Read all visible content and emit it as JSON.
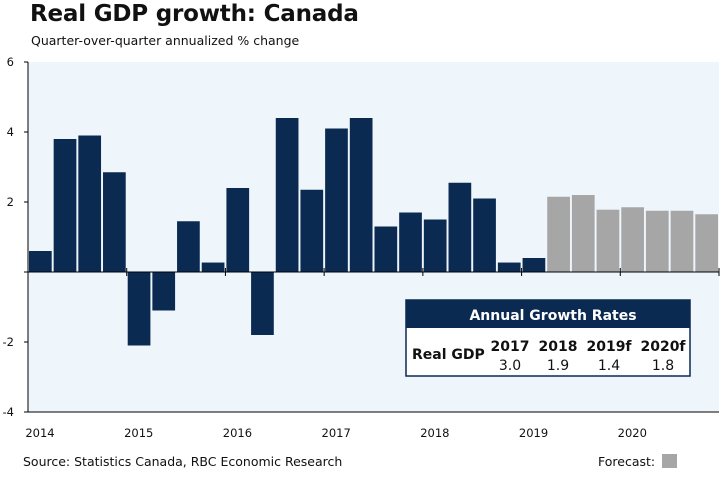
{
  "header": {
    "title": "Real GDP growth: Canada",
    "subtitle": "Quarter-over-quarter annualized % change"
  },
  "footer": {
    "source": "Source: Statistics Canada, RBC Economic Research",
    "forecast_label": "Forecast:"
  },
  "colors": {
    "actual": "#0b2a52",
    "forecast": "#a6a6a6",
    "plot_background": "#eef5fb",
    "table_border": "#0b2a52"
  },
  "chart_data": {
    "type": "bar",
    "title": "Real GDP growth: Canada",
    "subtitle": "Quarter-over-quarter annualized % change",
    "ylim": [
      -4,
      6
    ],
    "y_ticks": [
      -4,
      -2,
      0,
      2,
      4,
      6
    ],
    "y_tick_labels": [
      "-4",
      "-2",
      "",
      "2",
      "4",
      "6"
    ],
    "x_tick_labels": [
      "2014",
      "2015",
      "2016",
      "2017",
      "2018",
      "2019",
      "2020"
    ],
    "grid": false,
    "legend": "bottom-right",
    "categories": [
      "2014Q1",
      "2014Q2",
      "2014Q3",
      "2014Q4",
      "2015Q1",
      "2015Q2",
      "2015Q3",
      "2015Q4",
      "2016Q1",
      "2016Q2",
      "2016Q3",
      "2016Q4",
      "2017Q1",
      "2017Q2",
      "2017Q3",
      "2017Q4",
      "2018Q1",
      "2018Q2",
      "2018Q3",
      "2018Q4",
      "2019Q1",
      "2019Q2",
      "2019Q3",
      "2019Q4",
      "2020Q1",
      "2020Q2",
      "2020Q3",
      "2020Q4"
    ],
    "values": [
      0.6,
      3.8,
      3.9,
      2.85,
      -2.1,
      -1.1,
      1.45,
      0.27,
      2.4,
      -1.8,
      4.4,
      2.35,
      4.1,
      4.4,
      1.3,
      1.7,
      1.5,
      2.55,
      2.1,
      0.27,
      0.4,
      2.15,
      2.2,
      1.78,
      1.85,
      1.75,
      1.75,
      1.65
    ],
    "forecast": [
      false,
      false,
      false,
      false,
      false,
      false,
      false,
      false,
      false,
      false,
      false,
      false,
      false,
      false,
      false,
      false,
      false,
      false,
      false,
      false,
      false,
      true,
      true,
      true,
      true,
      true,
      true,
      true
    ]
  },
  "annual_table": {
    "title": "Annual Growth Rates",
    "row_label": "Real GDP",
    "columns": [
      {
        "year": "2017",
        "value": "3.0"
      },
      {
        "year": "2018",
        "value": "1.9"
      },
      {
        "year": "2019f",
        "value": "1.4"
      },
      {
        "year": "2020f",
        "value": "1.8"
      }
    ]
  }
}
